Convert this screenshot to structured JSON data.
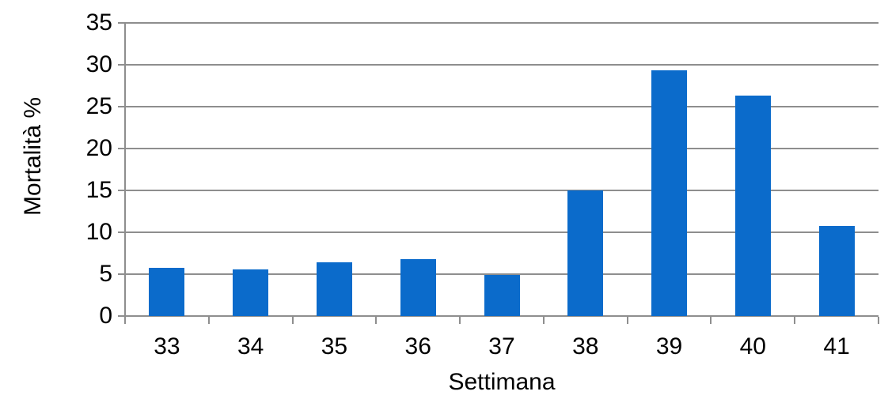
{
  "chart_data": {
    "type": "bar",
    "categories": [
      "33",
      "34",
      "35",
      "36",
      "37",
      "38",
      "39",
      "40",
      "41"
    ],
    "values": [
      5.8,
      5.6,
      6.4,
      6.8,
      4.9,
      15,
      29.3,
      26.3,
      10.8
    ],
    "title": "",
    "xlabel": "Settimana",
    "ylabel": "Mortalità %",
    "ylim": [
      0,
      35
    ],
    "ytick_step": 5,
    "yticks": [
      0,
      5,
      10,
      15,
      20,
      25,
      30,
      35
    ],
    "grid": true,
    "legend": false,
    "bar_color": "#0B6BCB",
    "grid_color": "#8E8E8E",
    "axis_color": "#8E8E8E",
    "text_color": "#000000",
    "background_color": "#FFFFFF"
  }
}
